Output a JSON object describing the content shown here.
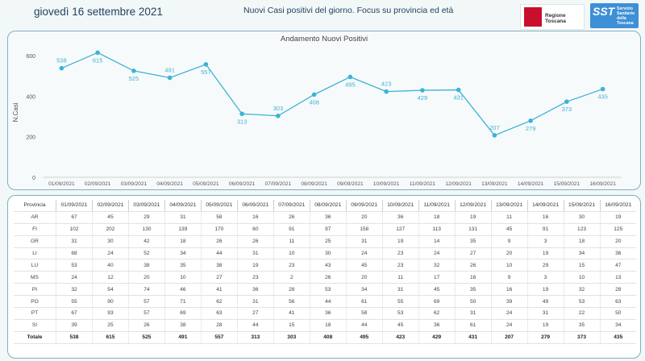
{
  "header": {
    "date": "giovedì 16 settembre 2021",
    "subtitle": "Nuovi Casi positivi del giorno. Focus su provincia ed età",
    "logo_rt_text": "Regione Toscana",
    "logo_sst_big": "SST",
    "logo_sst_small": "Servizio Sanitario della Toscana"
  },
  "colors": {
    "line": "#3bb3d6",
    "border": "#7fb0c4",
    "text": "#1f3f5f"
  },
  "chart_data": {
    "type": "line",
    "title": "Andamento Nuovi Positivi",
    "xlabel": "",
    "ylabel": "N.Casi",
    "categories": [
      "01/09/2021",
      "02/09/2021",
      "03/09/2021",
      "04/09/2021",
      "05/09/2021",
      "06/09/2021",
      "07/09/2021",
      "08/09/2021",
      "09/09/2021",
      "10/09/2021",
      "11/09/2021",
      "12/09/2021",
      "13/09/2021",
      "14/09/2021",
      "15/09/2021",
      "16/09/2021"
    ],
    "series": [
      {
        "values": [
          538,
          615,
          525,
          491,
          557,
          313,
          303,
          408,
          495,
          423,
          429,
          431,
          207,
          279,
          373,
          435
        ]
      }
    ],
    "yticks": [
      0,
      200,
      400,
      600
    ],
    "ylim": [
      0,
      640
    ],
    "grid": false,
    "legend": "none"
  },
  "table": {
    "header_label": "Provincia",
    "dates": [
      "01/09/2021",
      "02/09/2021",
      "03/09/2021",
      "04/09/2021",
      "05/09/2021",
      "06/09/2021",
      "07/09/2021",
      "08/09/2021",
      "09/09/2021",
      "10/09/2021",
      "11/09/2021",
      "12/09/2021",
      "13/09/2021",
      "14/09/2021",
      "15/09/2021",
      "16/09/2021"
    ],
    "rows": [
      {
        "name": "AR",
        "values": [
          67,
          45,
          29,
          31,
          58,
          16,
          26,
          36,
          20,
          36,
          18,
          19,
          11,
          16,
          30,
          19
        ]
      },
      {
        "name": "FI",
        "values": [
          102,
          202,
          130,
          139,
          170,
          60,
          91,
          97,
          158,
          127,
          113,
          131,
          45,
          91,
          123,
          125
        ]
      },
      {
        "name": "GR",
        "values": [
          31,
          30,
          42,
          18,
          26,
          26,
          11,
          25,
          31,
          19,
          14,
          35,
          9,
          3,
          18,
          20
        ]
      },
      {
        "name": "LI",
        "values": [
          68,
          24,
          52,
          34,
          44,
          31,
          10,
          30,
          24,
          23,
          24,
          27,
          20,
          19,
          34,
          36
        ]
      },
      {
        "name": "LU",
        "values": [
          53,
          40,
          38,
          35,
          38,
          19,
          23,
          43,
          45,
          23,
          32,
          26,
          10,
          29,
          15,
          47
        ]
      },
      {
        "name": "MS",
        "values": [
          24,
          12,
          20,
          10,
          27,
          23,
          2,
          26,
          20,
          11,
          17,
          16,
          9,
          3,
          10,
          13
        ]
      },
      {
        "name": "PI",
        "values": [
          32,
          54,
          74,
          46,
          41,
          36,
          28,
          53,
          34,
          31,
          45,
          35,
          16,
          19,
          32,
          28
        ]
      },
      {
        "name": "PO",
        "values": [
          55,
          90,
          57,
          71,
          62,
          31,
          56,
          44,
          61,
          55,
          69,
          50,
          39,
          49,
          53,
          63
        ]
      },
      {
        "name": "PT",
        "values": [
          67,
          93,
          57,
          69,
          63,
          27,
          41,
          36,
          58,
          53,
          62,
          31,
          24,
          31,
          22,
          50
        ]
      },
      {
        "name": "SI",
        "values": [
          39,
          25,
          26,
          38,
          28,
          44,
          15,
          18,
          44,
          45,
          36,
          61,
          24,
          19,
          35,
          34
        ]
      }
    ],
    "total_label": "Totale",
    "totals": [
      538,
      615,
      525,
      491,
      557,
      313,
      303,
      408,
      495,
      423,
      429,
      431,
      207,
      279,
      373,
      435
    ]
  }
}
